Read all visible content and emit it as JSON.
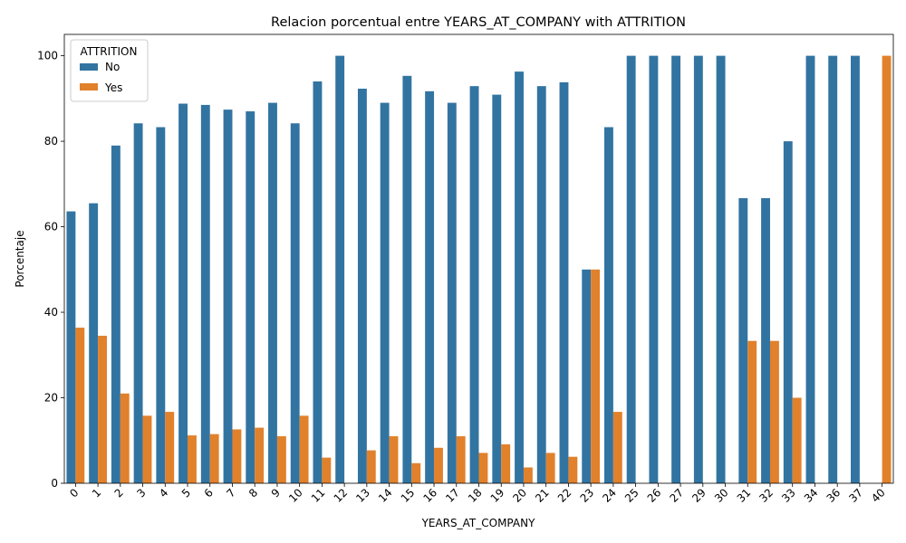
{
  "chart_data": {
    "type": "bar",
    "title": "Relacion porcentual entre YEARS_AT_COMPANY with ATTRITION",
    "xlabel": "YEARS_AT_COMPANY",
    "ylabel": "Porcentaje",
    "ylim": [
      0,
      105
    ],
    "yticks": [
      0,
      20,
      40,
      60,
      80,
      100
    ],
    "grid": false,
    "legend": {
      "title": "ATTRITION",
      "placement": "top-left"
    },
    "categories": [
      "0",
      "1",
      "2",
      "3",
      "4",
      "5",
      "6",
      "7",
      "8",
      "9",
      "10",
      "11",
      "12",
      "13",
      "14",
      "15",
      "16",
      "17",
      "18",
      "19",
      "20",
      "21",
      "22",
      "23",
      "24",
      "25",
      "26",
      "27",
      "29",
      "30",
      "31",
      "32",
      "33",
      "34",
      "36",
      "37",
      "40"
    ],
    "series": [
      {
        "name": "No",
        "color": "#3274a1",
        "values": [
          63.6,
          65.5,
          79.0,
          84.2,
          83.3,
          88.8,
          88.5,
          87.4,
          87.0,
          89.0,
          84.2,
          94.0,
          100,
          92.3,
          89.0,
          95.3,
          91.7,
          89.0,
          92.9,
          90.9,
          96.3,
          92.9,
          93.8,
          50.0,
          83.3,
          100,
          100,
          100,
          100,
          100,
          66.7,
          66.7,
          80.0,
          100,
          100,
          100,
          0
        ]
      },
      {
        "name": "Yes",
        "color": "#e1812c",
        "values": [
          36.4,
          34.5,
          21.0,
          15.8,
          16.7,
          11.2,
          11.5,
          12.6,
          13.0,
          11.0,
          15.8,
          6.0,
          0,
          7.7,
          11.0,
          4.7,
          8.3,
          11.0,
          7.1,
          9.1,
          3.7,
          7.1,
          6.2,
          50.0,
          16.7,
          0,
          0,
          0,
          0,
          0,
          33.3,
          33.3,
          20.0,
          0,
          0,
          0,
          100
        ]
      }
    ]
  }
}
